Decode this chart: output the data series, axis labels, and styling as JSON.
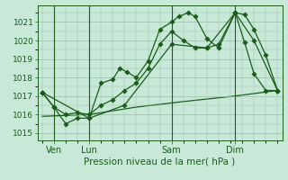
{
  "bg_color": "#c8e8d8",
  "line_color": "#1a5c1a",
  "grid_color": "#9bbfaa",
  "title": "Pression niveau de la mer( hPa )",
  "yticks": [
    1015,
    1016,
    1017,
    1018,
    1019,
    1020,
    1021
  ],
  "ylim": [
    1014.6,
    1021.9
  ],
  "xlim": [
    -0.2,
    10.2
  ],
  "xtick_labels": [
    "Ven",
    "Lun",
    "Sam",
    "Dim"
  ],
  "xtick_positions": [
    0.5,
    2.0,
    5.5,
    8.2
  ],
  "vlines": [
    0.5,
    2.0,
    5.5,
    8.2
  ],
  "line1_x": [
    0.0,
    0.5,
    1.0,
    1.5,
    2.0,
    2.5,
    3.0,
    3.3,
    3.6,
    4.0,
    4.5,
    5.0,
    5.5,
    5.8,
    6.2,
    6.5,
    7.0,
    7.5,
    8.2,
    8.6,
    9.0,
    9.5,
    10.0
  ],
  "line1_y": [
    1017.2,
    1016.4,
    1015.5,
    1015.8,
    1015.8,
    1017.7,
    1017.9,
    1018.5,
    1018.3,
    1018.0,
    1018.9,
    1020.6,
    1021.0,
    1021.3,
    1021.5,
    1021.3,
    1020.1,
    1019.6,
    1021.5,
    1021.4,
    1020.6,
    1019.2,
    1017.3
  ],
  "line2_x": [
    0.0,
    0.5,
    1.0,
    1.5,
    2.0,
    2.5,
    3.0,
    3.5,
    4.0,
    4.5,
    5.0,
    5.5,
    6.0,
    6.5,
    7.0,
    7.5,
    8.2,
    8.6,
    9.0,
    9.5,
    10.0
  ],
  "line2_y": [
    1017.2,
    1016.4,
    1016.0,
    1016.1,
    1016.0,
    1016.5,
    1016.8,
    1017.3,
    1017.7,
    1018.5,
    1019.8,
    1020.5,
    1020.0,
    1019.6,
    1019.6,
    1019.8,
    1021.5,
    1019.9,
    1018.2,
    1017.3,
    1017.3
  ],
  "line3_x": [
    0.0,
    2.0,
    3.5,
    5.5,
    7.0,
    8.2,
    9.0,
    10.0
  ],
  "line3_y": [
    1017.2,
    1015.8,
    1016.5,
    1019.8,
    1019.6,
    1021.5,
    1020.0,
    1017.3
  ],
  "line4_x": [
    0.0,
    2.0,
    4.0,
    6.0,
    8.2,
    10.0
  ],
  "line4_y": [
    1015.9,
    1016.0,
    1016.4,
    1016.7,
    1017.0,
    1017.3
  ]
}
